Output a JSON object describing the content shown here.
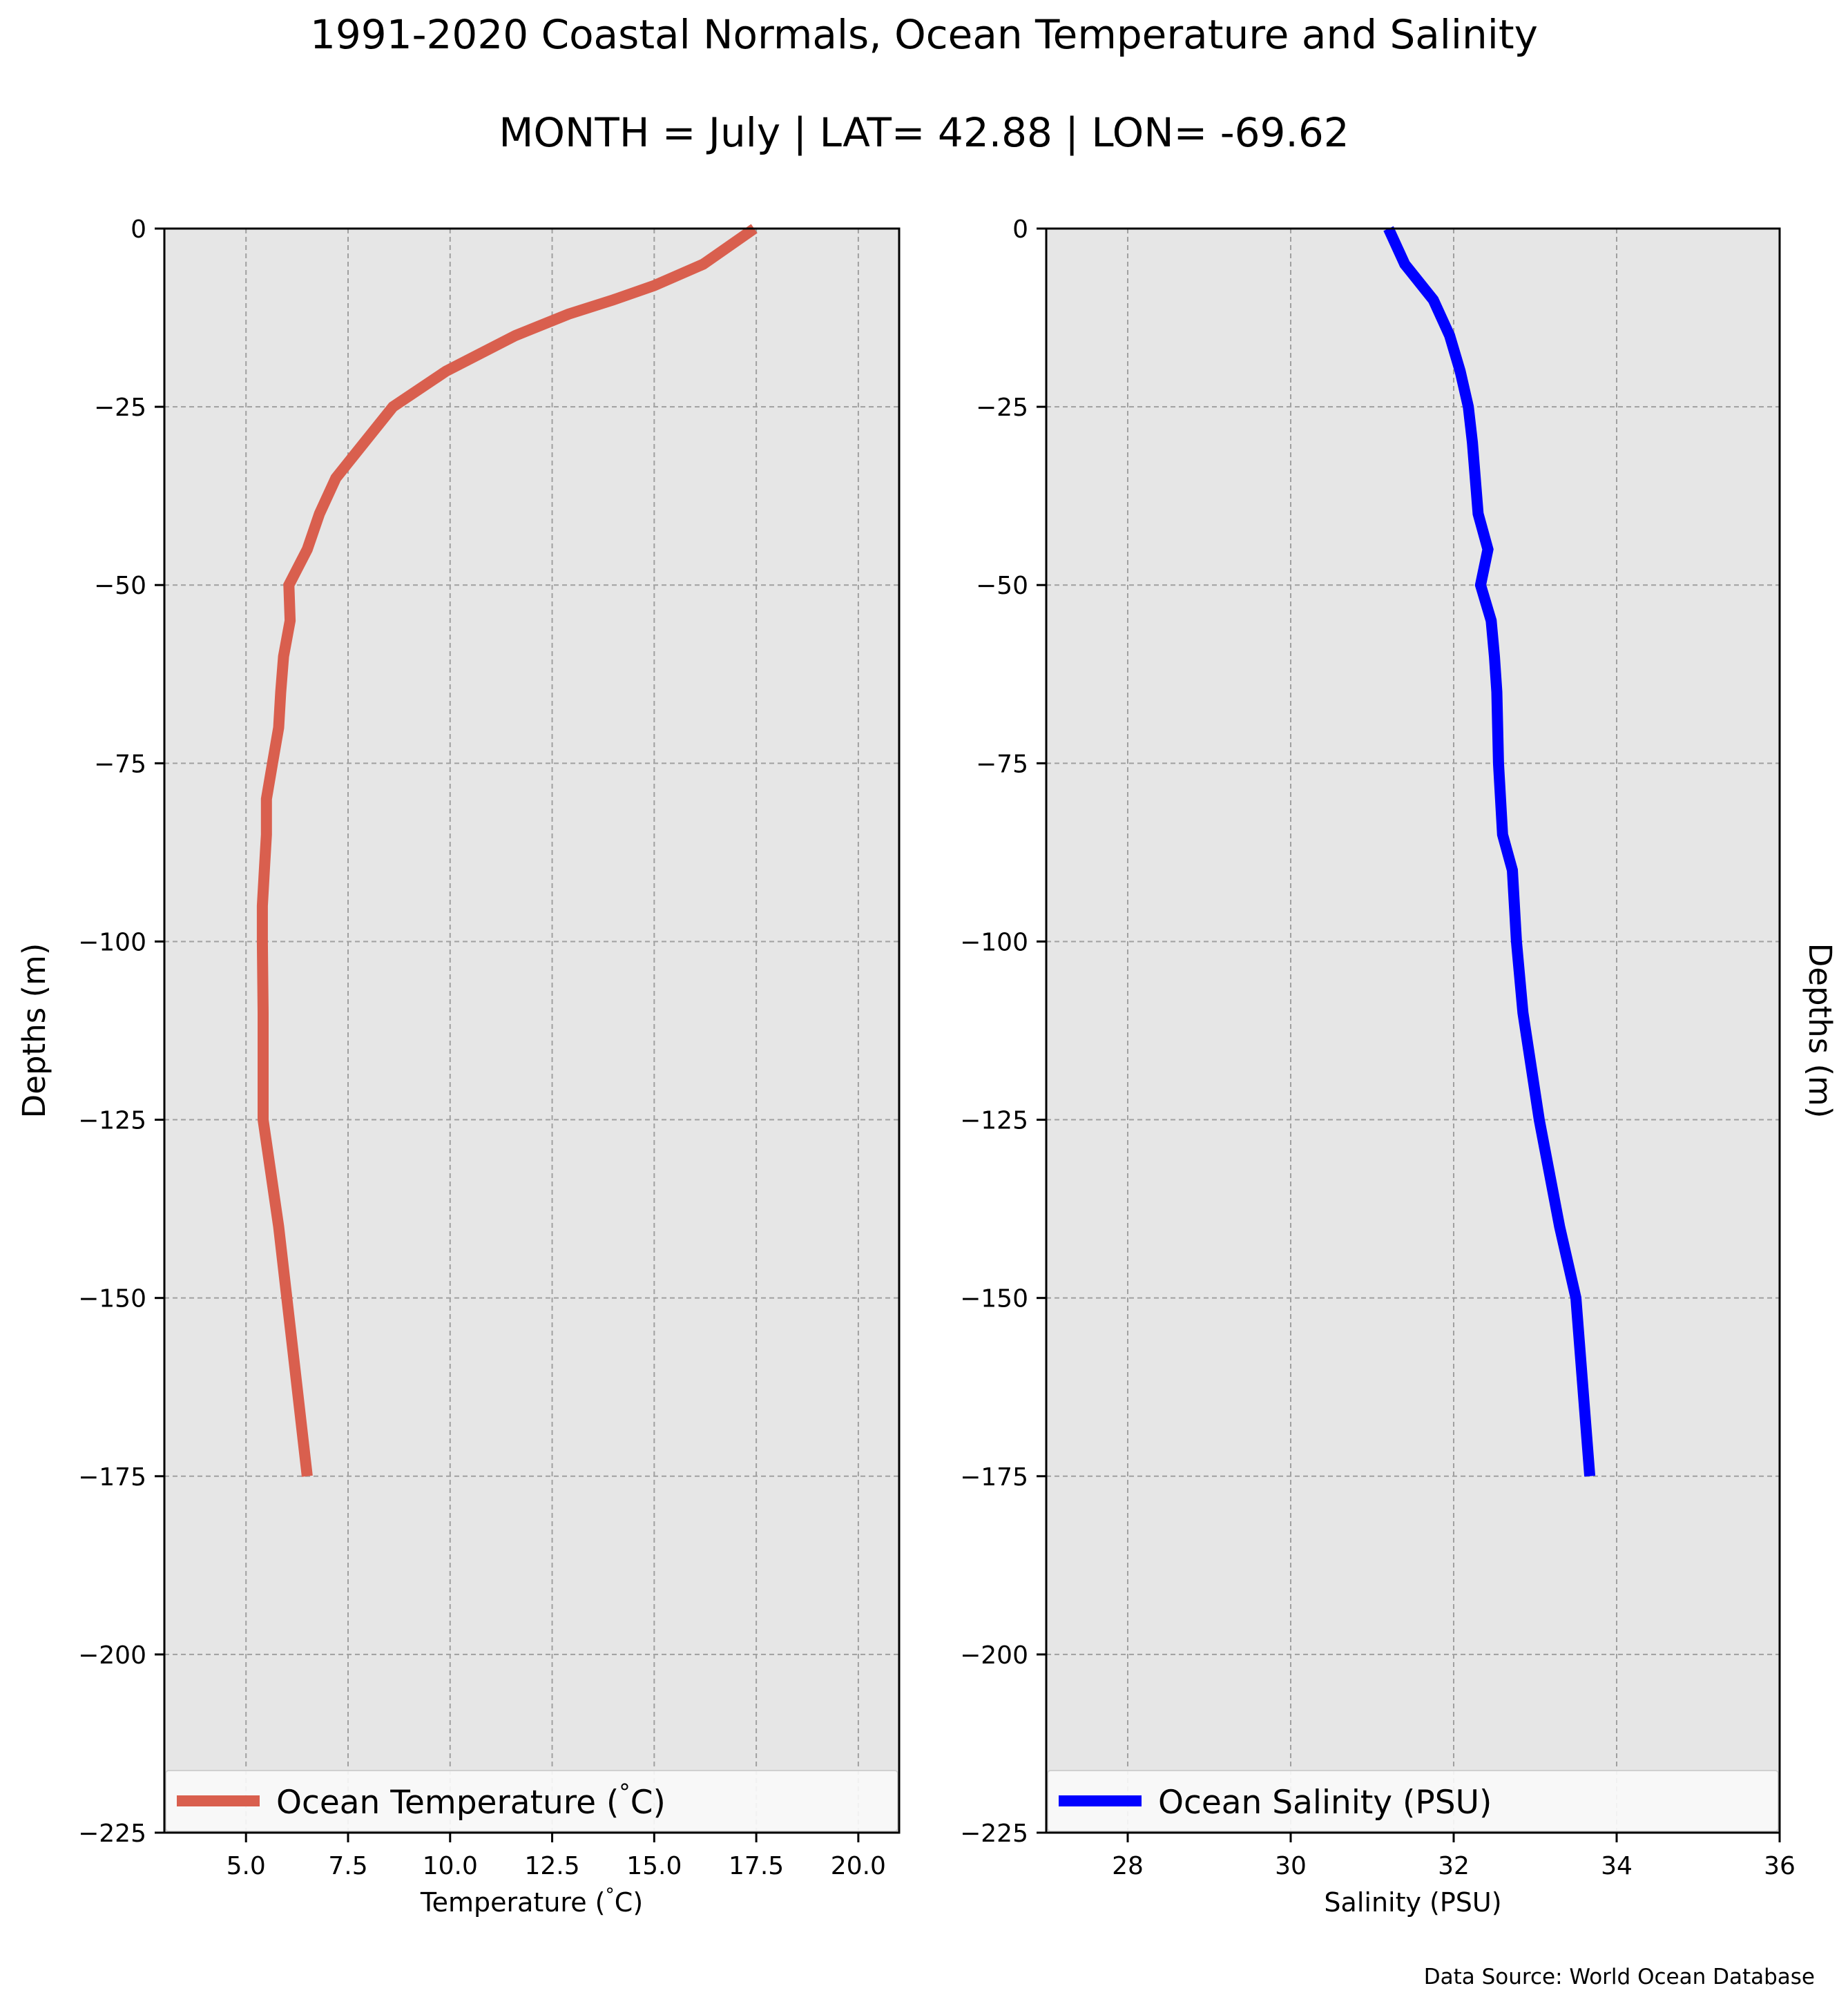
{
  "figure": {
    "title": "1991-2020 Coastal Normals, Ocean Temperature and Salinity",
    "subtitle": "MONTH = July | LAT= 42.88 | LON= -69.62",
    "source_note": "Data Source: World Ocean Database",
    "plot_background": "#e6e6e6",
    "grid_color": "#a0a0a0"
  },
  "chart_data": [
    {
      "type": "line",
      "name": "temperature-panel",
      "xlabel": "Temperature ($^\\circ$C)",
      "ylabel": "Depths (m)",
      "ylabel_side": "left",
      "xlim": [
        3.0,
        21.0
      ],
      "ylim": [
        -225,
        0
      ],
      "xticks": [
        5.0,
        7.5,
        10.0,
        12.5,
        15.0,
        17.5,
        20.0
      ],
      "xtick_labels": [
        "5.0",
        "7.5",
        "10.0",
        "12.5",
        "15.0",
        "17.5",
        "20.0"
      ],
      "yticks": [
        0,
        -25,
        -50,
        -75,
        -100,
        -125,
        -150,
        -175,
        -200,
        -225
      ],
      "ytick_labels": [
        "0",
        "−25",
        "−50",
        "−75",
        "−100",
        "−125",
        "−150",
        "−175",
        "−200",
        "−225"
      ],
      "grid": true,
      "legend_position": "lower center",
      "series": [
        {
          "name": "Ocean Temperature ($^\\circ$C)",
          "color": "#d95f4e",
          "x": [
            17.45,
            16.2,
            15.0,
            14.0,
            12.9,
            11.6,
            9.9,
            8.6,
            7.9,
            7.2,
            6.8,
            6.5,
            6.05,
            6.08,
            5.92,
            5.85,
            5.8,
            5.65,
            5.5,
            5.5,
            5.45,
            5.4,
            5.4,
            5.42,
            5.42,
            5.42,
            5.8,
            6.2,
            6.5
          ],
          "y": [
            0,
            -5,
            -8,
            -10,
            -12,
            -15,
            -20,
            -25,
            -30,
            -35,
            -40,
            -45,
            -50,
            -55,
            -60,
            -65,
            -70,
            -75,
            -80,
            -85,
            -90,
            -95,
            -100,
            -110,
            -120,
            -125,
            -140,
            -160,
            -175
          ]
        }
      ]
    },
    {
      "type": "line",
      "name": "salinity-panel",
      "xlabel": "Salinity (PSU)",
      "ylabel": "Depths (m)",
      "ylabel_side": "right",
      "xlim": [
        27,
        36
      ],
      "ylim": [
        -225,
        0
      ],
      "xticks": [
        28,
        30,
        32,
        34,
        36
      ],
      "xtick_labels": [
        "28",
        "30",
        "32",
        "34",
        "36"
      ],
      "yticks": [
        0,
        -25,
        -50,
        -75,
        -100,
        -125,
        -150,
        -175,
        -200,
        -225
      ],
      "ytick_labels": [
        "0",
        "−25",
        "−50",
        "−75",
        "−100",
        "−125",
        "−150",
        "−175",
        "−200",
        "−225"
      ],
      "grid": true,
      "legend_position": "lower center",
      "series": [
        {
          "name": "Ocean Salinity (PSU)",
          "color": "#0000ff",
          "x": [
            31.2,
            31.4,
            31.75,
            31.95,
            32.08,
            32.18,
            32.23,
            32.3,
            32.42,
            32.33,
            32.46,
            32.5,
            32.53,
            32.54,
            32.55,
            32.6,
            32.72,
            32.77,
            32.85,
            33.05,
            33.3,
            33.5,
            33.67
          ],
          "y": [
            0,
            -5,
            -10,
            -15,
            -20,
            -25,
            -30,
            -40,
            -45,
            -50,
            -55,
            -60,
            -65,
            -70,
            -75,
            -85,
            -90,
            -100,
            -110,
            -125,
            -140,
            -150,
            -175
          ]
        }
      ]
    }
  ]
}
